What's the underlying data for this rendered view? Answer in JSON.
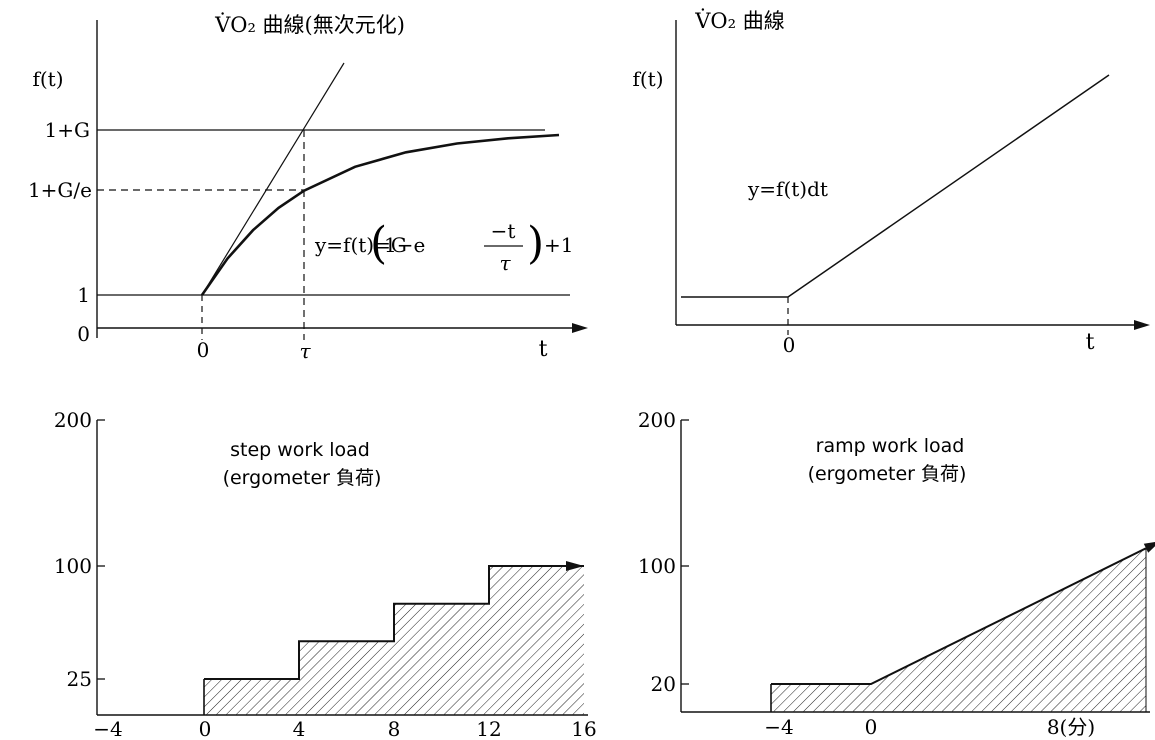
{
  "chart_data": [
    {
      "type": "line",
      "title": "V̇O₂ 曲線(無次元化)",
      "ylabel": "f(t)",
      "xlabel": "t",
      "x_ticks": [
        "0",
        "τ"
      ],
      "y_ticks": [
        "0",
        "1",
        "1+G/e",
        "1+G"
      ],
      "equation": "y=f(t)=G(1−e^(−t/τ))+1",
      "equation_parts": {
        "lhs": "y=f(t)=G",
        "one_minus_e": "1−e",
        "numerator": "−t",
        "denominator": "τ",
        "tail": "+1"
      },
      "series": [
        {
          "name": "f(t)",
          "x": [
            0,
            0.25,
            0.5,
            0.75,
            1,
            1.5,
            2,
            2.5,
            3,
            3.5
          ],
          "y": [
            1,
            1.221,
            1.393,
            1.528,
            1.632,
            1.777,
            1.865,
            1.918,
            1.95,
            1.97
          ]
        }
      ],
      "notes": [
        "horizontal line at y=1",
        "horizontal line at y=1+G",
        "tangent line at t=0",
        "dashed guides at t=τ"
      ]
    },
    {
      "type": "line",
      "title": "V̇O₂ 曲線",
      "ylabel": "f(t)",
      "xlabel": "t",
      "x_ticks": [
        "0"
      ],
      "annotation": "y=f(t)dt",
      "series": [
        {
          "name": "",
          "x": [
            -1,
            0,
            3
          ],
          "y": [
            0.1,
            0.1,
            1.0
          ]
        }
      ]
    },
    {
      "type": "area",
      "title": "step work load",
      "subtitle": "(ergometer 負荷)",
      "x_ticks": [
        "−4",
        "0",
        "4",
        "8",
        "12",
        "16"
      ],
      "y_ticks": [
        "25",
        "100",
        "200"
      ],
      "series": [
        {
          "name": "",
          "x": [
            0,
            4,
            4,
            8,
            8,
            12,
            12,
            16
          ],
          "y": [
            25,
            25,
            50,
            50,
            75,
            75,
            100,
            100
          ]
        }
      ]
    },
    {
      "type": "area",
      "title": "ramp work load",
      "subtitle": "(ergometer 負荷)",
      "x_ticks": [
        "−4",
        "0",
        "8(分)"
      ],
      "y_ticks": [
        "20",
        "100",
        "200"
      ],
      "series": [
        {
          "name": "",
          "x": [
            -4,
            0,
            11
          ],
          "y": [
            20,
            20,
            112
          ]
        }
      ]
    }
  ]
}
